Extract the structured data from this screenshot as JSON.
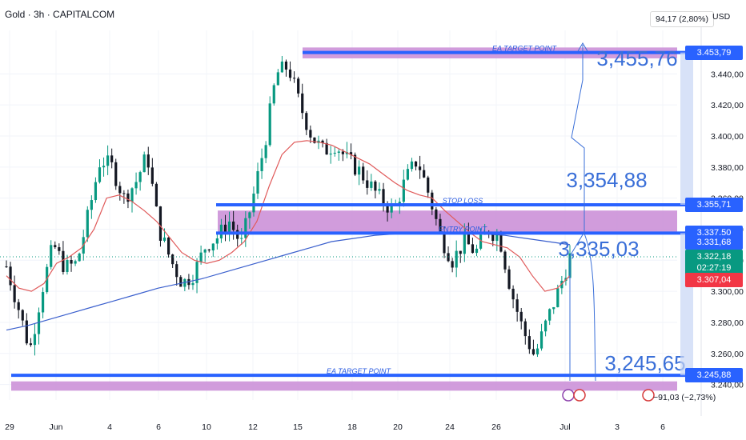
{
  "header": {
    "title": "Gold · 3h · CAPITALCOM",
    "currency": "USD"
  },
  "measure_top": "94,17 (2,80%)",
  "measure_bottom": "−91,03 (−2,73%)",
  "price_labels": [
    {
      "text": "3.453,79",
      "value": 3453.79,
      "color": "#2962ff"
    },
    {
      "text": "3.355,71",
      "value": 3355.71,
      "color": "#2962ff"
    },
    {
      "text": "3.337,50",
      "value": 3337.5,
      "color": "#2962ff"
    },
    {
      "text": "3.331,68",
      "value": 3331.68,
      "color": "#2962ff"
    },
    {
      "text": "3.322,18",
      "value": 3322.18,
      "color": "#089981"
    },
    {
      "text": "02:27:19",
      "value": 3315.0,
      "color": "#089981"
    },
    {
      "text": "3.307,04",
      "value": 3307.04,
      "color": "#f23645"
    },
    {
      "text": "3.245,88",
      "value": 3245.88,
      "color": "#2962ff"
    }
  ],
  "chart_data": {
    "type": "candlestick",
    "title": "Gold · 3h · CAPITALCOM",
    "y_ticks": [
      "3.240,00",
      "3.260,00",
      "3.280,00",
      "3.300,00",
      "3.320,00",
      "3.340,00",
      "3.360,00",
      "3.380,00",
      "3.400,00",
      "3.420,00",
      "3.440,00"
    ],
    "y_tick_values": [
      3240,
      3260,
      3280,
      3300,
      3320,
      3340,
      3360,
      3380,
      3400,
      3420,
      3440
    ],
    "x_ticks": [
      "29",
      "Jun",
      "4",
      "6",
      "10",
      "12",
      "15",
      "18",
      "20",
      "24",
      "26",
      "Jul",
      "3",
      "6"
    ],
    "ylim": [
      3230,
      3468
    ],
    "levels": [
      {
        "name": "EA TARGET POINT",
        "value": 3453.79
      },
      {
        "name": "STOP LOSS",
        "value": 3355.71
      },
      {
        "name": "ENTRY POINT",
        "value": 3337.5
      },
      {
        "name": "EA TARGET POINT",
        "value": 3245.88
      }
    ],
    "annotations": [
      "3,455,76",
      "3,354,88",
      "3,335,03",
      "3,245,65"
    ],
    "zones": [
      {
        "from": 3450,
        "to": 3457
      },
      {
        "from": 3337,
        "to": 3352
      },
      {
        "from": 3236,
        "to": 3242
      }
    ],
    "close_path": [
      3316,
      3290,
      3262,
      3300,
      3330,
      3315,
      3318,
      3350,
      3385,
      3380,
      3360,
      3370,
      3388,
      3340,
      3320,
      3305,
      3312,
      3330,
      3335,
      3345,
      3330,
      3360,
      3395,
      3440,
      3445,
      3420,
      3400,
      3390,
      3395,
      3385,
      3378,
      3368,
      3358,
      3352,
      3372,
      3385,
      3362,
      3335,
      3320,
      3332,
      3325,
      3340,
      3335,
      3300,
      3275,
      3258,
      3280,
      3300,
      3322
    ],
    "ma_fast": [
      3310,
      3302,
      3300,
      3305,
      3318,
      3322,
      3328,
      3340,
      3360,
      3362,
      3358,
      3352,
      3345,
      3335,
      3325,
      3320,
      3318,
      3320,
      3325,
      3332,
      3345,
      3368,
      3388,
      3396,
      3397,
      3396,
      3394,
      3390,
      3386,
      3382,
      3376,
      3370,
      3365,
      3362,
      3360,
      3352,
      3345,
      3338,
      3332,
      3330,
      3328,
      3322,
      3310,
      3300,
      3302,
      3310
    ],
    "ma_slow": [
      3275,
      3278,
      3282,
      3286,
      3290,
      3294,
      3298,
      3302,
      3305,
      3308,
      3312,
      3316,
      3320,
      3324,
      3328,
      3332,
      3334,
      3336,
      3337,
      3338,
      3338,
      3338,
      3337,
      3336,
      3334,
      3332,
      3330
    ]
  }
}
